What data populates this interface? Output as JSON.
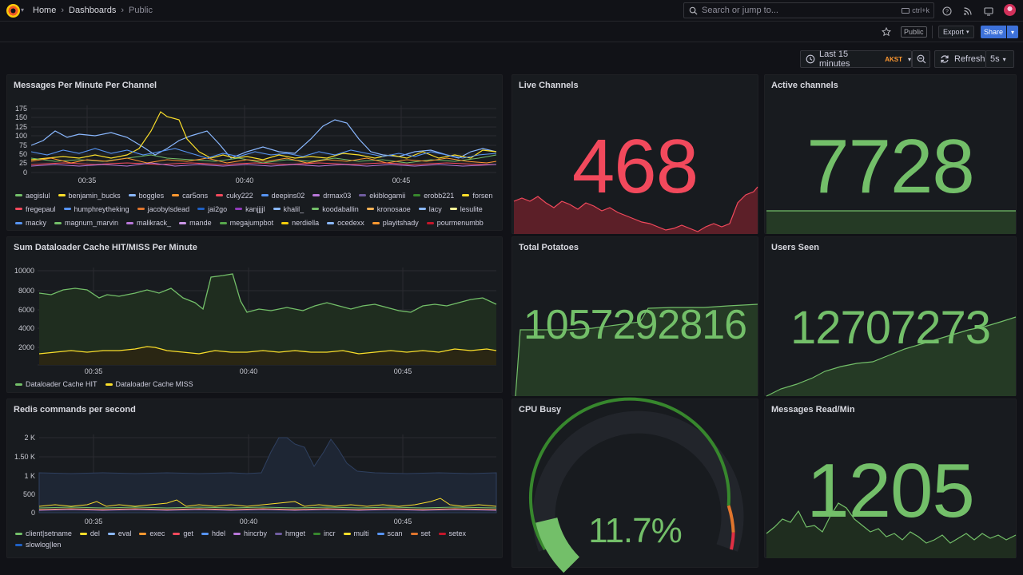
{
  "nav": {
    "breadcrumbs": [
      "Home",
      "Dashboards",
      "Public"
    ],
    "search_placeholder": "Search or jump to...",
    "search_shortcut": "ctrl+k"
  },
  "toolbar": {
    "public_badge": "Public",
    "export_label": "Export",
    "share_label": "Share",
    "time_range": "Last 15 minutes",
    "timezone": "AKST",
    "refresh_label": "Refresh",
    "refresh_interval": "5s"
  },
  "colors": {
    "red": "#f2495c",
    "green": "#73bf69",
    "yellow": "#fade2a",
    "blue": "#8ab8ff",
    "orange": "#ff9830"
  },
  "panels": {
    "messages_per_minute": {
      "title": "Messages Per Minute Per Channel",
      "legend": [
        {
          "name": "aegislul",
          "color": "#73bf69"
        },
        {
          "name": "benjamin_bucks",
          "color": "#fade2a"
        },
        {
          "name": "boggles",
          "color": "#8ab8ff"
        },
        {
          "name": "car5ons",
          "color": "#ff9830"
        },
        {
          "name": "cuky222",
          "color": "#f2495c"
        },
        {
          "name": "deepins02",
          "color": "#5794f2"
        },
        {
          "name": "drmax03",
          "color": "#b877d9"
        },
        {
          "name": "ekiblogamii",
          "color": "#705da0"
        },
        {
          "name": "erobb221",
          "color": "#37872d"
        },
        {
          "name": "forsen",
          "color": "#fade2a"
        },
        {
          "name": "fregepaul",
          "color": "#f2495c"
        },
        {
          "name": "humphreytheking",
          "color": "#5794f2"
        },
        {
          "name": "jacobylsdead",
          "color": "#e0752d"
        },
        {
          "name": "jai2go",
          "color": "#1f60c4"
        },
        {
          "name": "kanjjjjl",
          "color": "#8f3bb8"
        },
        {
          "name": "khalil_",
          "color": "#8ab8ff"
        },
        {
          "name": "koodaballin",
          "color": "#73bf69"
        },
        {
          "name": "kronosaoe",
          "color": "#ffb357"
        },
        {
          "name": "lacy",
          "color": "#8ab8ff"
        },
        {
          "name": "lesulite",
          "color": "#fff899"
        },
        {
          "name": "macky",
          "color": "#5794f2"
        },
        {
          "name": "magnum_marvin",
          "color": "#73bf69"
        },
        {
          "name": "malikrack_",
          "color": "#b877d9"
        },
        {
          "name": "mande",
          "color": "#ca95e5"
        },
        {
          "name": "megajumpbot",
          "color": "#56a64b"
        },
        {
          "name": "nerdiella",
          "color": "#f2cc0c"
        },
        {
          "name": "ocedexx",
          "color": "#8ab8ff"
        },
        {
          "name": "playitshady",
          "color": "#ff9830"
        },
        {
          "name": "pourmenumbb",
          "color": "#c4162a"
        }
      ]
    },
    "live_channels": {
      "title": "Live Channels",
      "value": "468"
    },
    "active_channels": {
      "title": "Active channels",
      "value": "7728"
    },
    "dataloader": {
      "title": "Sum Dataloader Cache HIT/MISS Per Minute",
      "legend": [
        {
          "name": "Dataloader Cache HIT",
          "color": "#73bf69"
        },
        {
          "name": "Dataloader Cache MISS",
          "color": "#fade2a"
        }
      ]
    },
    "total_potatoes": {
      "title": "Total Potatoes",
      "value": "1057292816"
    },
    "users_seen": {
      "title": "Users Seen",
      "value": "12707273"
    },
    "redis": {
      "title": "Redis commands per second",
      "legend": [
        {
          "name": "client|setname",
          "color": "#73bf69"
        },
        {
          "name": "del",
          "color": "#fade2a"
        },
        {
          "name": "eval",
          "color": "#8ab8ff"
        },
        {
          "name": "exec",
          "color": "#ff9830"
        },
        {
          "name": "get",
          "color": "#f2495c"
        },
        {
          "name": "hdel",
          "color": "#5794f2"
        },
        {
          "name": "hincrby",
          "color": "#b877d9"
        },
        {
          "name": "hmget",
          "color": "#705da0"
        },
        {
          "name": "incr",
          "color": "#37872d"
        },
        {
          "name": "multi",
          "color": "#fade2a"
        },
        {
          "name": "scan",
          "color": "#5794f2"
        },
        {
          "name": "set",
          "color": "#e0752d"
        },
        {
          "name": "setex",
          "color": "#c4162a"
        },
        {
          "name": "slowlog|len",
          "color": "#1f60c4"
        }
      ]
    },
    "cpu_busy": {
      "title": "CPU Busy",
      "value": "11.7%",
      "percent": 11.7
    },
    "messages_read": {
      "title": "Messages Read/Min",
      "value": "1205"
    }
  },
  "axes": {
    "time_ticks": [
      "00:35",
      "00:40",
      "00:45"
    ],
    "messages_y": [
      "175",
      "150",
      "125",
      "100",
      "75",
      "50",
      "25",
      "0"
    ],
    "dataloader_y": [
      "10000",
      "8000",
      "6000",
      "4000",
      "2000"
    ],
    "redis_y": [
      "2 K",
      "1.50 K",
      "1 K",
      "500",
      "0"
    ]
  }
}
